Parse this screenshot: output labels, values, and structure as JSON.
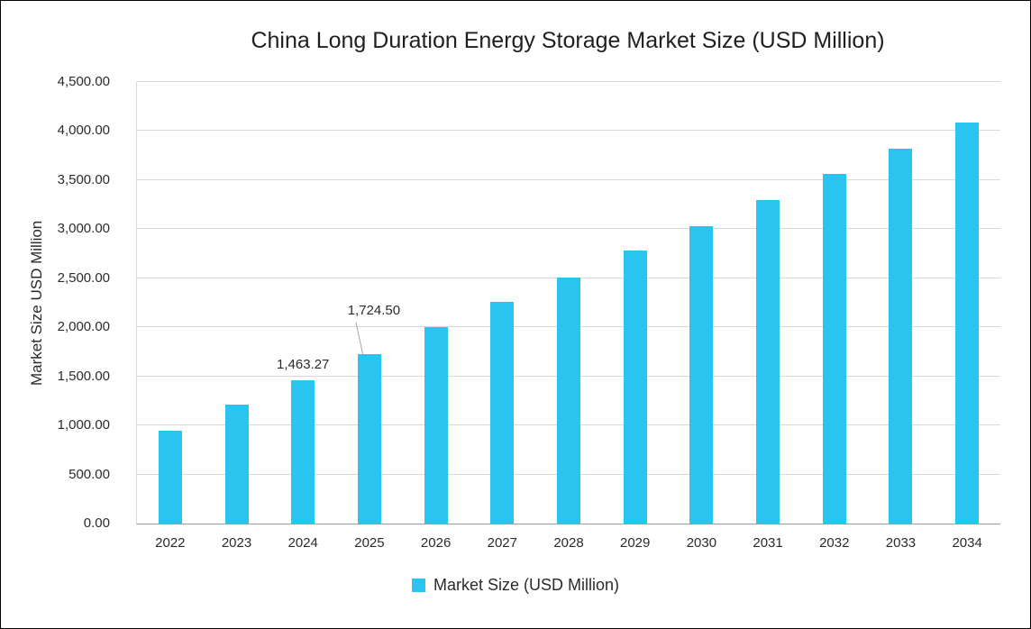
{
  "title": "China Long Duration Energy Storage Market Size (USD Million)",
  "legend": {
    "label": "Market Size (USD Million)"
  },
  "colors": {
    "bar": "#29c5f0",
    "gridline": "#d9d9d9",
    "axis": "#9b9b9b"
  },
  "chart_data": {
    "type": "bar",
    "title": "China Long Duration Energy Storage Market Size (USD Million)",
    "xlabel": "",
    "ylabel": "Market Size USD Million",
    "categories": [
      "2022",
      "2023",
      "2024",
      "2025",
      "2026",
      "2027",
      "2028",
      "2029",
      "2030",
      "2031",
      "2032",
      "2033",
      "2034"
    ],
    "values": [
      950,
      1210,
      1463.27,
      1724.5,
      2000,
      2255,
      2510,
      2780,
      3035,
      3300,
      3560,
      3825,
      4090
    ],
    "ylim": [
      0,
      4500
    ],
    "yticks": [
      {
        "value": 0,
        "label": "0.00"
      },
      {
        "value": 500,
        "label": "500.00"
      },
      {
        "value": 1000,
        "label": "1,000.00"
      },
      {
        "value": 1500,
        "label": "1,500.00"
      },
      {
        "value": 2000,
        "label": "2,000.00"
      },
      {
        "value": 2500,
        "label": "2,500.00"
      },
      {
        "value": 3000,
        "label": "3,000.00"
      },
      {
        "value": 3500,
        "label": "3,500.00"
      },
      {
        "value": 4000,
        "label": "4,000.00"
      },
      {
        "value": 4500,
        "label": "4,500.00"
      }
    ],
    "grid": true,
    "legend_position": "bottom",
    "bar_color": "#29c5f0",
    "annotations": [
      {
        "index": 2,
        "text": "1,463.27",
        "leader": false
      },
      {
        "index": 3,
        "text": "1,724.50",
        "leader": true
      }
    ]
  }
}
